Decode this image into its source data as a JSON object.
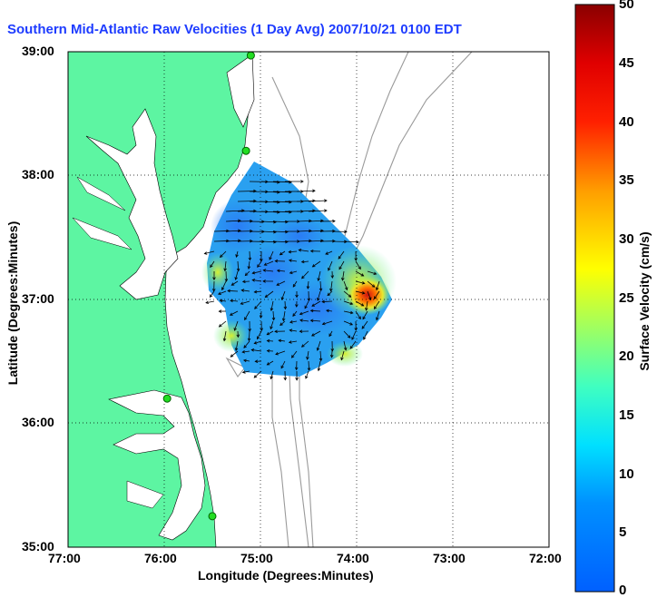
{
  "title": "Southern Mid-Atlantic Raw Velocities (1 Day Avg) 2007/10/21 0100 EDT",
  "colors": {
    "land": "#5df5a2",
    "ocean": "#ffffff",
    "grid": "#000000",
    "bathy": "#9a9a9a",
    "station": "#22dd22"
  },
  "axes": {
    "xlabel": "Longitude (Degrees:Minutes)",
    "ylabel": "Latitude (Degrees:Minutes)",
    "xticks": [
      "77:00",
      "76:00",
      "75:00",
      "74:00",
      "73:00",
      "72:00"
    ],
    "yticks": [
      "39:00",
      "38:00",
      "37:00",
      "36:00",
      "35:00"
    ],
    "xlim": [
      -77,
      -72
    ],
    "ylim": [
      35,
      39
    ]
  },
  "colorbar": {
    "label": "Surface Velocity (cm/s)",
    "range": [
      0,
      50
    ],
    "ticks": [
      "50",
      "45",
      "40",
      "35",
      "30",
      "25",
      "20",
      "15",
      "10",
      "5",
      "0"
    ]
  },
  "stations": [
    {
      "lon": -75.1,
      "lat": 38.97
    },
    {
      "lon": -75.15,
      "lat": 38.2
    },
    {
      "lon": -75.97,
      "lat": 36.2
    },
    {
      "lon": -75.5,
      "lat": 35.25
    }
  ]
}
